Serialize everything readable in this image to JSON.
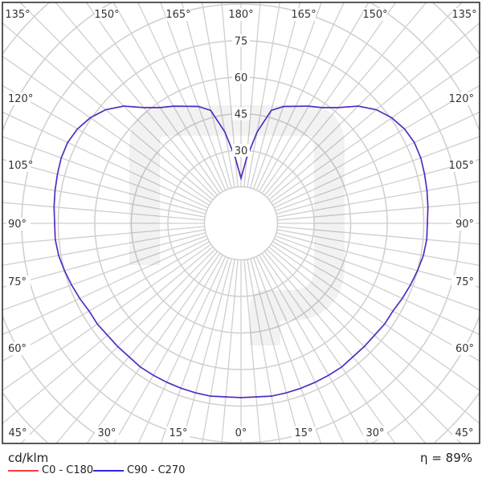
{
  "chart_data": {
    "type": "polar-line",
    "unit": "cd/klm",
    "efficiency": "η = 89%",
    "radial_ticks": [
      30,
      45,
      60,
      75
    ],
    "radial_grid": [
      15,
      30,
      45,
      60,
      75,
      90,
      105,
      120,
      135
    ],
    "angle_labels": {
      "top": [
        "135°",
        "150°",
        "165°",
        "180°",
        "165°",
        "150°",
        "135°"
      ],
      "left": [
        "120°",
        "105°",
        "90°",
        "75°",
        "60°"
      ],
      "right": [
        "120°",
        "105°",
        "90°",
        "75°",
        "60°"
      ],
      "bottom": [
        "45°",
        "30°",
        "15°",
        "0°",
        "15°",
        "30°",
        "45°"
      ]
    },
    "gamma": [
      0,
      5,
      10,
      15,
      20,
      25,
      30,
      35,
      40,
      45,
      50,
      55,
      60,
      65,
      70,
      75,
      80,
      85,
      90,
      95,
      100,
      105,
      110,
      115,
      120,
      125,
      130,
      135,
      140,
      145,
      150,
      155,
      160,
      165,
      170,
      175,
      180
    ],
    "series": [
      {
        "name": "C0 - C180",
        "color": "#ff3b3b",
        "values": [
          71.5,
          71.5,
          72,
          72,
          72,
          72,
          72,
          72,
          71.5,
          71.5,
          71.5,
          72,
          72,
          73,
          74,
          75,
          76,
          76.5,
          76.5,
          77,
          77.5,
          78,
          78.5,
          78.5,
          77.5,
          75.5,
          72.5,
          68,
          62,
          58,
          55.5,
          53,
          51,
          48,
          38,
          27,
          18.5
        ]
      },
      {
        "name": "C90 - C270",
        "color": "#2a2ae0",
        "values": [
          71.5,
          71.5,
          72,
          72,
          72,
          72,
          72,
          72,
          71.5,
          71.5,
          71.5,
          72,
          72,
          73,
          74,
          75,
          76,
          76.5,
          76.5,
          77,
          77.5,
          78,
          78.5,
          78.5,
          77.5,
          75.5,
          72.5,
          68,
          62,
          58,
          55.5,
          53,
          51,
          48,
          38,
          27,
          18.5
        ]
      }
    ]
  }
}
